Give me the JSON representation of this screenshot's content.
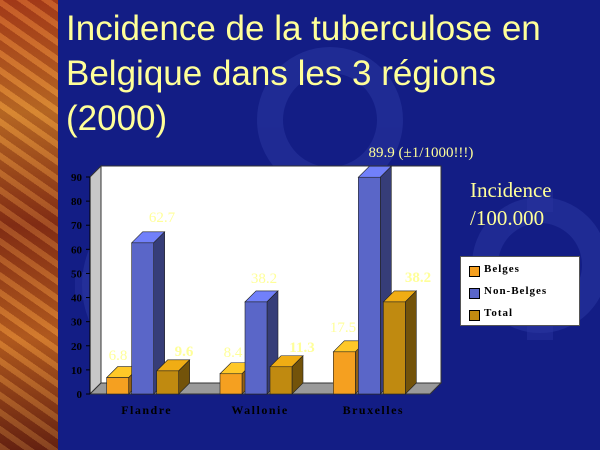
{
  "slide": {
    "title_lines": [
      "Incidence de la tuberculose en",
      "Belgique dans les 3 régions",
      "(2000)"
    ],
    "side_label_lines": [
      "Incidence",
      "/100.000"
    ]
  },
  "colors": {
    "background": "#131d85",
    "title": "#ffff99",
    "labels": "#ffff99",
    "belges": "#f5a020",
    "non_belges": "#5a66c8",
    "total": "#c08a10",
    "plot_area": "#ffffff"
  },
  "chart_data": {
    "type": "bar",
    "categories": [
      "Flandre",
      "Wallonie",
      "Bruxelles"
    ],
    "series": [
      {
        "name": "Belges",
        "values": [
          6.8,
          8.4,
          17.5
        ]
      },
      {
        "name": "Non-Belges",
        "values": [
          62.7,
          38.2,
          89.9
        ]
      },
      {
        "name": "Total",
        "values": [
          9.6,
          11.3,
          38.2
        ]
      }
    ],
    "data_labels": [
      [
        "6.8",
        "62.7",
        "9.6"
      ],
      [
        "8.4",
        "38.2",
        "11.3"
      ],
      [
        "17.5",
        "89.9 (±1/1000!!!)",
        "38.2"
      ]
    ],
    "ylim": [
      0,
      90
    ],
    "yticks": [
      0,
      10,
      20,
      30,
      40,
      50,
      60,
      70,
      80,
      90
    ],
    "grid": false,
    "three_d": true,
    "legend_position": "right"
  }
}
